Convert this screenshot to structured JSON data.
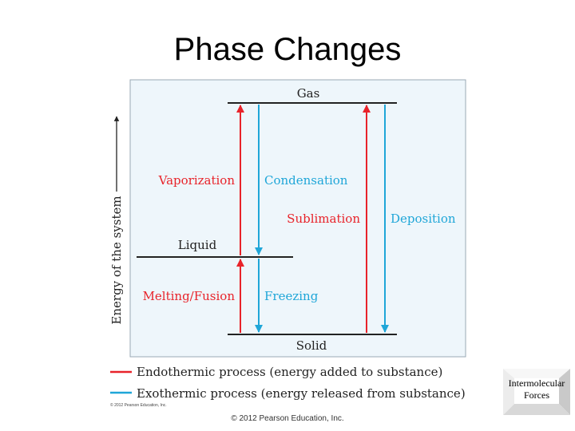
{
  "slide": {
    "title": "Phase Changes",
    "copyright_small": "© 2012 Pearson Education, Inc.",
    "footer": "© 2012 Pearson Education, Inc."
  },
  "diagram": {
    "y_axis_label": "Energy of the system",
    "states": {
      "gas": "Gas",
      "liquid": "Liquid",
      "solid": "Solid"
    },
    "processes": {
      "vaporization": "Vaporization",
      "condensation": "Condensation",
      "sublimation": "Sublimation",
      "deposition": "Deposition",
      "melting": "Melting/Fusion",
      "freezing": "Freezing"
    },
    "legend": {
      "endothermic": "Endothermic process (energy added to substance)",
      "exothermic": "Exothermic process (energy released from substance)"
    },
    "colors": {
      "endothermic": "#e8232a",
      "exothermic": "#1fa6d8",
      "panel_bg": "#eef6fb",
      "panel_border": "#9aa9b4"
    }
  },
  "nav": {
    "line1": "Intermolecular",
    "line2": "Forces"
  }
}
